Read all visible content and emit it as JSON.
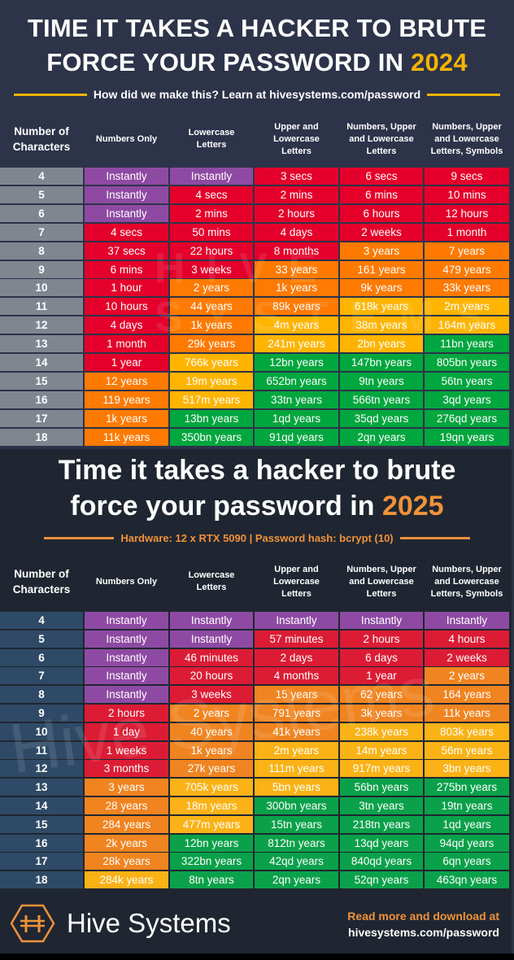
{
  "colors": {
    "purple": "#8e4aa3",
    "red_2024": "#e4002b",
    "orange_2024": "#ff7a00",
    "yellow_2024": "#ffb400",
    "green_2024": "#00a63e",
    "red_2025": "#dc1c35",
    "orange_2025": "#f08420",
    "yellow_2025": "#fbb216",
    "green_2025": "#0aa14a",
    "accent_2024": "#f5b400",
    "accent_2025": "#f0923a"
  },
  "top": {
    "title_line1": "TIME IT TAKES A HACKER TO BRUTE",
    "title_line2_prefix": "FORCE YOUR PASSWORD IN ",
    "title_year": "2024",
    "subtitle": "How did we make this? Learn at hivesystems.com/password"
  },
  "bottom": {
    "title_line1": "Time it takes a hacker to brute",
    "title_line2_prefix": "force your password in ",
    "title_year": "2025",
    "subtitle": "Hardware: 12 x RTX 5090 | Password hash: bcrypt (10)"
  },
  "headers": {
    "col0_line1": "Number of",
    "col0_line2": "Characters",
    "col1": "Numbers Only",
    "col2_line1": "Lowercase",
    "col2_line2": "Letters",
    "col3_line1": "Upper and",
    "col3_line2": "Lowercase",
    "col3_line3": "Letters",
    "col4_line1": "Numbers, Upper",
    "col4_line2": "and Lowercase",
    "col4_line3": "Letters",
    "col5_line1": "Numbers, Upper",
    "col5_line2": "and Lowercase",
    "col5_line3": "Letters, Symbols"
  },
  "watermarks": {
    "top": "HIVE SYSTEMS",
    "bottom": "Hive Systems"
  },
  "footer": {
    "brand": "Hive Systems",
    "read_more_line1": "Read more and download at",
    "read_more_line2": "hivesystems.com/password"
  },
  "chart_data": [
    {
      "type": "table",
      "title": "TIME IT TAKES A HACKER TO BRUTE FORCE YOUR PASSWORD IN 2024",
      "subtitle": "How did we make this? Learn at hivesystems.com/password",
      "columns": [
        "Number of Characters",
        "Numbers Only",
        "Lowercase Letters",
        "Upper and Lowercase Letters",
        "Numbers, Upper and Lowercase Letters",
        "Numbers, Upper and Lowercase Letters, Symbols"
      ],
      "rows": [
        {
          "n": "4",
          "cells": [
            "Instantly",
            "Instantly",
            "3 secs",
            "6 secs",
            "9 secs"
          ],
          "colors": [
            "p",
            "p",
            "r",
            "r",
            "r"
          ]
        },
        {
          "n": "5",
          "cells": [
            "Instantly",
            "4 secs",
            "2 mins",
            "6 mins",
            "10 mins"
          ],
          "colors": [
            "p",
            "r",
            "r",
            "r",
            "r"
          ]
        },
        {
          "n": "6",
          "cells": [
            "Instantly",
            "2 mins",
            "2 hours",
            "6 hours",
            "12 hours"
          ],
          "colors": [
            "p",
            "r",
            "r",
            "r",
            "r"
          ]
        },
        {
          "n": "7",
          "cells": [
            "4 secs",
            "50 mins",
            "4 days",
            "2 weeks",
            "1 month"
          ],
          "colors": [
            "r",
            "r",
            "r",
            "r",
            "r"
          ]
        },
        {
          "n": "8",
          "cells": [
            "37 secs",
            "22 hours",
            "8 months",
            "3 years",
            "7 years"
          ],
          "colors": [
            "r",
            "r",
            "r",
            "o",
            "o"
          ]
        },
        {
          "n": "9",
          "cells": [
            "6 mins",
            "3 weeks",
            "33 years",
            "161 years",
            "479 years"
          ],
          "colors": [
            "r",
            "r",
            "o",
            "o",
            "o"
          ]
        },
        {
          "n": "10",
          "cells": [
            "1 hour",
            "2 years",
            "1k years",
            "9k years",
            "33k years"
          ],
          "colors": [
            "r",
            "o",
            "o",
            "o",
            "o"
          ]
        },
        {
          "n": "11",
          "cells": [
            "10 hours",
            "44 years",
            "89k years",
            "618k years",
            "2m years"
          ],
          "colors": [
            "r",
            "o",
            "o",
            "y",
            "y"
          ]
        },
        {
          "n": "12",
          "cells": [
            "4 days",
            "1k years",
            "4m years",
            "38m years",
            "164m years"
          ],
          "colors": [
            "r",
            "o",
            "y",
            "y",
            "y"
          ]
        },
        {
          "n": "13",
          "cells": [
            "1 month",
            "29k years",
            "241m years",
            "2bn years",
            "11bn years"
          ],
          "colors": [
            "r",
            "o",
            "y",
            "y",
            "g"
          ]
        },
        {
          "n": "14",
          "cells": [
            "1 year",
            "766k years",
            "12bn years",
            "147bn years",
            "805bn years"
          ],
          "colors": [
            "r",
            "y",
            "g",
            "g",
            "g"
          ]
        },
        {
          "n": "15",
          "cells": [
            "12 years",
            "19m years",
            "652bn years",
            "9tn years",
            "56tn years"
          ],
          "colors": [
            "o",
            "y",
            "g",
            "g",
            "g"
          ]
        },
        {
          "n": "16",
          "cells": [
            "119 years",
            "517m years",
            "33tn years",
            "566tn years",
            "3qd years"
          ],
          "colors": [
            "o",
            "y",
            "g",
            "g",
            "g"
          ]
        },
        {
          "n": "17",
          "cells": [
            "1k years",
            "13bn years",
            "1qd years",
            "35qd years",
            "276qd years"
          ],
          "colors": [
            "o",
            "g",
            "g",
            "g",
            "g"
          ]
        },
        {
          "n": "18",
          "cells": [
            "11k years",
            "350bn years",
            "91qd years",
            "2qn years",
            "19qn years"
          ],
          "colors": [
            "o",
            "g",
            "g",
            "g",
            "g"
          ]
        }
      ]
    },
    {
      "type": "table",
      "title": "Time it takes a hacker to brute force your password in 2025",
      "subtitle": "Hardware: 12 x RTX 5090 | Password hash: bcrypt (10)",
      "columns": [
        "Number of Characters",
        "Numbers Only",
        "Lowercase Letters",
        "Upper and Lowercase Letters",
        "Numbers, Upper and Lowercase Letters",
        "Numbers, Upper and Lowercase Letters, Symbols"
      ],
      "rows": [
        {
          "n": "4",
          "cells": [
            "Instantly",
            "Instantly",
            "Instantly",
            "Instantly",
            "Instantly"
          ],
          "colors": [
            "p",
            "p",
            "p",
            "p",
            "p"
          ]
        },
        {
          "n": "5",
          "cells": [
            "Instantly",
            "Instantly",
            "57 minutes",
            "2 hours",
            "4 hours"
          ],
          "colors": [
            "p",
            "p",
            "r",
            "r",
            "r"
          ]
        },
        {
          "n": "6",
          "cells": [
            "Instantly",
            "46 minutes",
            "2 days",
            "6 days",
            "2 weeks"
          ],
          "colors": [
            "p",
            "r",
            "r",
            "r",
            "r"
          ]
        },
        {
          "n": "7",
          "cells": [
            "Instantly",
            "20 hours",
            "4 months",
            "1 year",
            "2 years"
          ],
          "colors": [
            "p",
            "r",
            "r",
            "r",
            "o"
          ]
        },
        {
          "n": "8",
          "cells": [
            "Instantly",
            "3 weeks",
            "15 years",
            "62 years",
            "164 years"
          ],
          "colors": [
            "p",
            "r",
            "o",
            "o",
            "o"
          ]
        },
        {
          "n": "9",
          "cells": [
            "2 hours",
            "2 years",
            "791 years",
            "3k years",
            "11k years"
          ],
          "colors": [
            "r",
            "o",
            "o",
            "o",
            "o"
          ]
        },
        {
          "n": "10",
          "cells": [
            "1 day",
            "40 years",
            "41k years",
            "238k years",
            "803k years"
          ],
          "colors": [
            "r",
            "o",
            "o",
            "y",
            "y"
          ]
        },
        {
          "n": "11",
          "cells": [
            "1 weeks",
            "1k years",
            "2m years",
            "14m years",
            "56m years"
          ],
          "colors": [
            "r",
            "o",
            "y",
            "y",
            "y"
          ]
        },
        {
          "n": "12",
          "cells": [
            "3 months",
            "27k years",
            "111m years",
            "917m years",
            "3bn years"
          ],
          "colors": [
            "r",
            "o",
            "y",
            "y",
            "y"
          ]
        },
        {
          "n": "13",
          "cells": [
            "3 years",
            "705k years",
            "5bn years",
            "56bn years",
            "275bn years"
          ],
          "colors": [
            "o",
            "y",
            "y",
            "g",
            "g"
          ]
        },
        {
          "n": "14",
          "cells": [
            "28 years",
            "18m years",
            "300bn years",
            "3tn years",
            "19tn years"
          ],
          "colors": [
            "o",
            "y",
            "g",
            "g",
            "g"
          ]
        },
        {
          "n": "15",
          "cells": [
            "284 years",
            "477m years",
            "15tn years",
            "218tn years",
            "1qd years"
          ],
          "colors": [
            "o",
            "y",
            "g",
            "g",
            "g"
          ]
        },
        {
          "n": "16",
          "cells": [
            "2k years",
            "12bn years",
            "812tn years",
            "13qd years",
            "94qd years"
          ],
          "colors": [
            "o",
            "g",
            "g",
            "g",
            "g"
          ]
        },
        {
          "n": "17",
          "cells": [
            "28k years",
            "322bn years",
            "42qd years",
            "840qd years",
            "6qn years"
          ],
          "colors": [
            "o",
            "g",
            "g",
            "g",
            "g"
          ]
        },
        {
          "n": "18",
          "cells": [
            "284k years",
            "8tn years",
            "2qn years",
            "52qn years",
            "463qn years"
          ],
          "colors": [
            "y",
            "g",
            "g",
            "g",
            "g"
          ]
        }
      ]
    }
  ]
}
